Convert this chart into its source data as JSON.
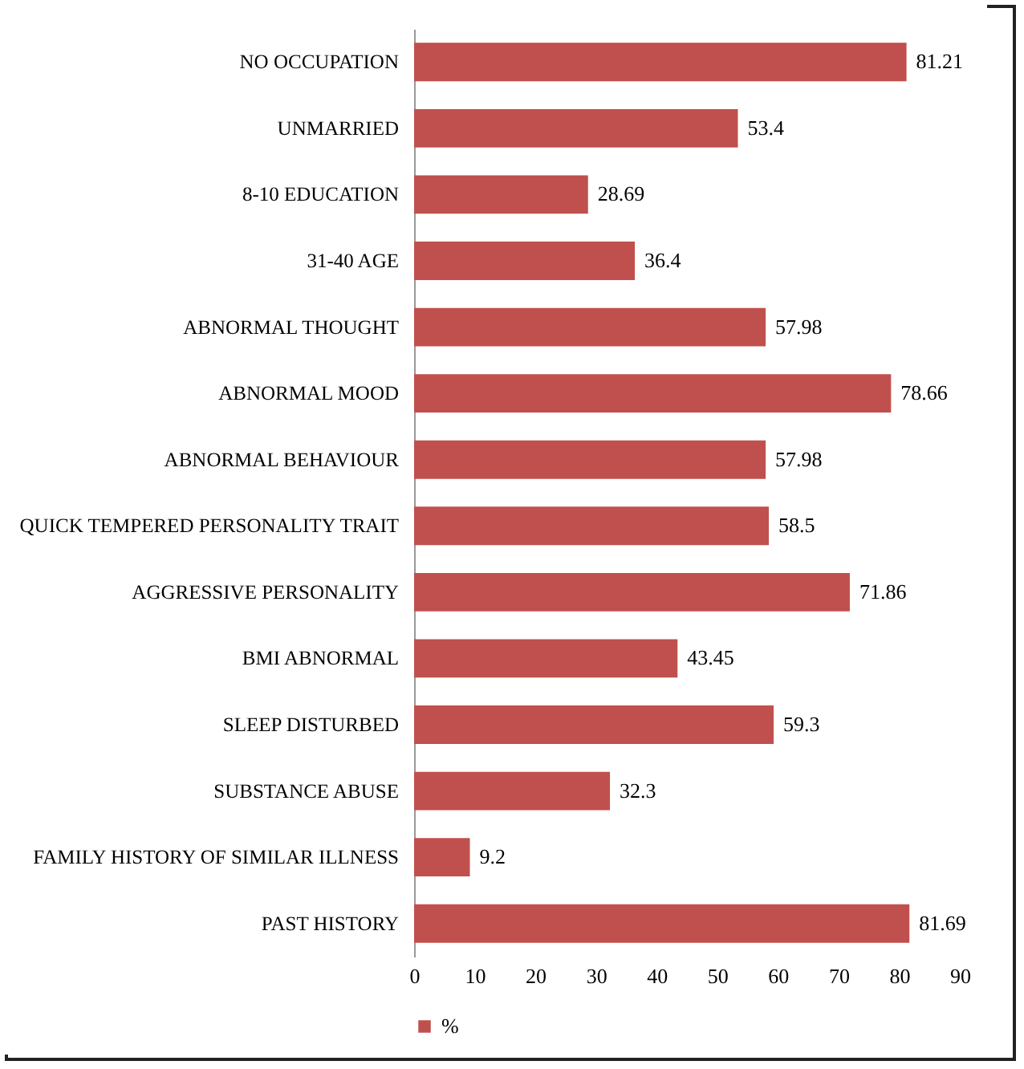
{
  "chart_data": {
    "type": "bar",
    "orientation": "horizontal",
    "categories": [
      "NO OCCUPATION",
      "UNMARRIED",
      "8-10 EDUCATION",
      "31-40 AGE",
      "ABNORMAL THOUGHT",
      "ABNORMAL MOOD",
      "ABNORMAL BEHAVIOUR",
      "QUICK TEMPERED PERSONALITY TRAIT",
      "AGGRESSIVE PERSONALITY",
      "BMI ABNORMAL",
      "SLEEP DISTURBED",
      "SUBSTANCE ABUSE",
      "FAMILY HISTORY OF SIMILAR ILLNESS",
      "PAST HISTORY"
    ],
    "series": [
      {
        "name": "%",
        "color": "#c0504d",
        "values": [
          81.21,
          53.4,
          28.69,
          36.4,
          57.98,
          78.66,
          57.98,
          58.5,
          71.86,
          43.45,
          59.3,
          32.3,
          9.2,
          81.69
        ]
      }
    ],
    "xlim": [
      0,
      90
    ],
    "xticks": [
      0,
      10,
      20,
      30,
      40,
      50,
      60,
      70,
      80,
      90
    ],
    "data_labels": true,
    "legend": "bottom",
    "grid": false
  }
}
